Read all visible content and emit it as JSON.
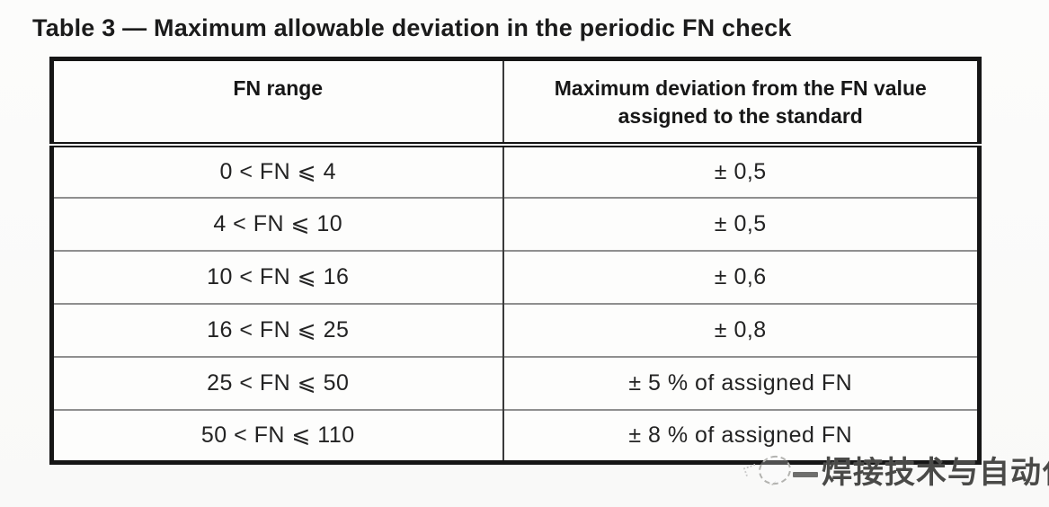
{
  "page": {
    "title": "Table 3 — Maximum allowable deviation in the periodic FN check"
  },
  "table": {
    "headers": {
      "range": "FN range",
      "deviation": "Maximum deviation from the FN value assigned to the standard"
    },
    "rows": [
      {
        "range": "0 < FN ⩽ 4",
        "deviation": "± 0,5"
      },
      {
        "range": "4 < FN ⩽ 10",
        "deviation": "± 0,5"
      },
      {
        "range": "10 < FN ⩽ 16",
        "deviation": "± 0,6"
      },
      {
        "range": "16 < FN ⩽ 25",
        "deviation": "± 0,8"
      },
      {
        "range": "25 < FN ⩽ 50",
        "deviation": "± 5 % of assigned FN"
      },
      {
        "range": "50 < FN ⩽ 110",
        "deviation": "± 8 % of assigned FN"
      }
    ]
  },
  "watermark": {
    "icon": "dashed-circle-logo",
    "text": "焊接技术与自动化"
  }
}
